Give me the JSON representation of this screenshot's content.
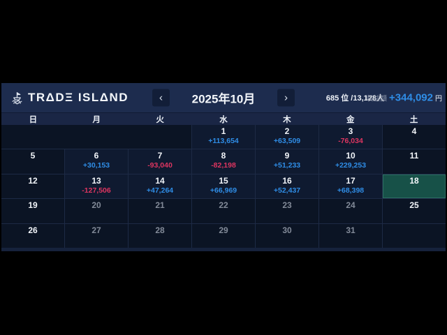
{
  "app": {
    "logo_icon": "trade-island-ship-icon",
    "logo_text": "TRΔDΞ ISLΔND"
  },
  "header": {
    "prev_button": "‹",
    "next_button": "›",
    "month_title": "2025年10月",
    "rank_text": "685 位 /13,128人",
    "profit_label": "収益額",
    "profit_value": "+344,092",
    "profit_unit": "円"
  },
  "weekdays": [
    "日",
    "月",
    "火",
    "水",
    "木",
    "金",
    "土"
  ],
  "colors": {
    "positive": "#2f8de6",
    "negative": "#dd3560",
    "today_highlight": "#175148",
    "header_bg": "#1d2c4e",
    "panel_bg": "#0b1424",
    "letterbox": "#000000"
  },
  "calendar": {
    "weeks": [
      [
        {
          "day": ""
        },
        {
          "day": ""
        },
        {
          "day": ""
        },
        {
          "day": "1",
          "value": "+113,654",
          "trend": "up"
        },
        {
          "day": "2",
          "value": "+63,509",
          "trend": "up"
        },
        {
          "day": "3",
          "value": "-76,034",
          "trend": "down"
        },
        {
          "day": "4"
        }
      ],
      [
        {
          "day": "5"
        },
        {
          "day": "6",
          "value": "+30,153",
          "trend": "up"
        },
        {
          "day": "7",
          "value": "-93,040",
          "trend": "down"
        },
        {
          "day": "8",
          "value": "-82,198",
          "trend": "down"
        },
        {
          "day": "9",
          "value": "+51,233",
          "trend": "up"
        },
        {
          "day": "10",
          "value": "+229,253",
          "trend": "up"
        },
        {
          "day": "11"
        }
      ],
      [
        {
          "day": "12"
        },
        {
          "day": "13",
          "value": "-127,506",
          "trend": "down"
        },
        {
          "day": "14",
          "value": "+47,264",
          "trend": "up"
        },
        {
          "day": "15",
          "value": "+66,969",
          "trend": "up"
        },
        {
          "day": "16",
          "value": "+52,437",
          "trend": "up"
        },
        {
          "day": "17",
          "value": "+68,398",
          "trend": "up"
        },
        {
          "day": "18",
          "today": true
        }
      ],
      [
        {
          "day": "19"
        },
        {
          "day": "20",
          "dim": true
        },
        {
          "day": "21",
          "dim": true
        },
        {
          "day": "22",
          "dim": true
        },
        {
          "day": "23",
          "dim": true
        },
        {
          "day": "24",
          "dim": true
        },
        {
          "day": "25"
        }
      ],
      [
        {
          "day": "26"
        },
        {
          "day": "27",
          "dim": true
        },
        {
          "day": "28",
          "dim": true
        },
        {
          "day": "29",
          "dim": true
        },
        {
          "day": "30",
          "dim": true
        },
        {
          "day": "31",
          "dim": true
        },
        {
          "day": ""
        }
      ]
    ]
  }
}
